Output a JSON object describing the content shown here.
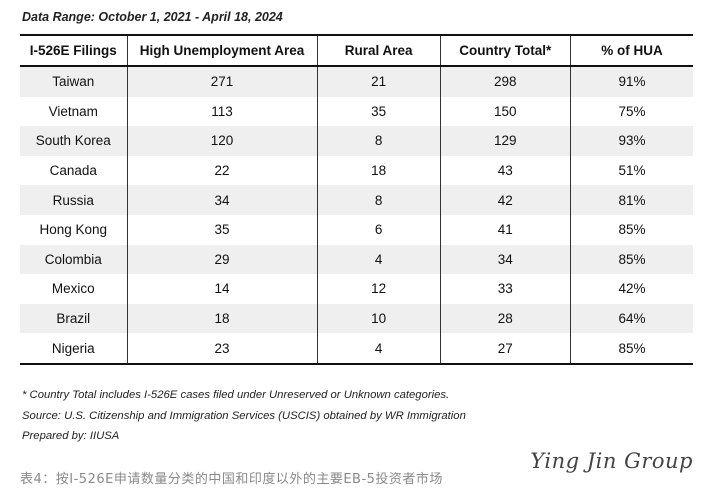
{
  "date_range": "Data Range: October 1, 2021 - April 18, 2024",
  "table": {
    "headers": [
      "I-526E Filings",
      "High Unemployment Area",
      "Rural Area",
      "Country Total*",
      "% of HUA"
    ],
    "rows": [
      [
        "Taiwan",
        "271",
        "21",
        "298",
        "91%"
      ],
      [
        "Vietnam",
        "113",
        "35",
        "150",
        "75%"
      ],
      [
        "South Korea",
        "120",
        "8",
        "129",
        "93%"
      ],
      [
        "Canada",
        "22",
        "18",
        "43",
        "51%"
      ],
      [
        "Russia",
        "34",
        "8",
        "42",
        "81%"
      ],
      [
        "Hong Kong",
        "35",
        "6",
        "41",
        "85%"
      ],
      [
        "Colombia",
        "29",
        "4",
        "34",
        "85%"
      ],
      [
        "Mexico",
        "14",
        "12",
        "33",
        "42%"
      ],
      [
        "Brazil",
        "18",
        "10",
        "28",
        "64%"
      ],
      [
        "Nigeria",
        "23",
        "4",
        "27",
        "85%"
      ]
    ]
  },
  "notes": {
    "footnote": "* Country Total includes I-526E cases filed under Unreserved or Unknown categories.",
    "source": "Source: U.S. Citizenship and Immigration Services (USCIS) obtained by WR Immigration",
    "prepared_by": "Prepared by: IIUSA"
  },
  "caption": "表4：按I-526E申请数量分类的中国和印度以外的主要EB-5投资者市场",
  "brand": "Ying Jin Group"
}
